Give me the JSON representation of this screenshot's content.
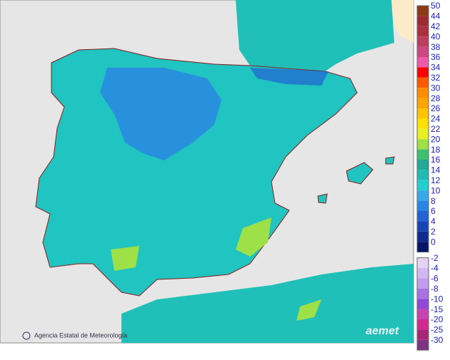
{
  "footer": {
    "agency": "Agencia Estatal de Meteorología",
    "logo": "aemet"
  },
  "legend": {
    "levels": [
      50,
      44,
      42,
      40,
      38,
      36,
      34,
      32,
      30,
      28,
      26,
      24,
      22,
      20,
      18,
      16,
      14,
      12,
      10,
      8,
      6,
      4,
      2,
      0
    ],
    "colors": [
      "#8b3a12",
      "#9e2a30",
      "#ad3040",
      "#bc3d5e",
      "#cc4680",
      "#ee5aa8",
      "#ff0000",
      "#ff5a00",
      "#ff8c00",
      "#ffa500",
      "#ffc400",
      "#ffe000",
      "#e8f020",
      "#9ee048",
      "#3cc070",
      "#20aa98",
      "#20bcb4",
      "#20d0d0",
      "#38a8e8",
      "#2a84e4",
      "#2262d4",
      "#1644b4",
      "#102a90",
      "#061468"
    ],
    "neg_levels": [
      -2,
      -4,
      -6,
      -8,
      -10,
      -15,
      -20,
      -25,
      -30
    ],
    "neg_colors": [
      "#e4d4f4",
      "#d2b8f2",
      "#c09cf0",
      "#a672e4",
      "#9048d8",
      "#c842b0",
      "#d42890",
      "#a82676",
      "#803484"
    ]
  }
}
